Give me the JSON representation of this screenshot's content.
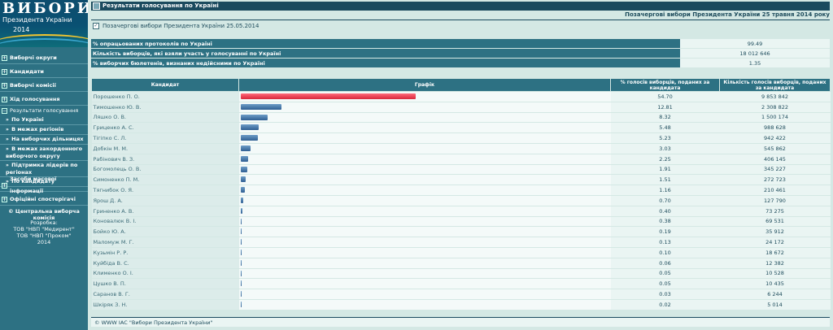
{
  "logo": {
    "title": "ВИБОРИ",
    "subtitle": "Президента України",
    "year": "2014"
  },
  "sidebar": {
    "items": [
      {
        "label": "Виборчі округи",
        "top": 66
      },
      {
        "label": "Кандидати",
        "top": 82
      },
      {
        "label": "Виборчі комісії",
        "top": 98
      },
      {
        "label": "Хід голосування",
        "top": 114
      }
    ],
    "results_section": {
      "label": "Результати голосування",
      "subitems": [
        "По Україні",
        "В межах регіонів",
        "На виборчих дільницях",
        "В межах закордонного виборчого округу",
        "Підтримка лідерів по регіонах",
        "По кандидату"
      ]
    },
    "items_bottom": [
      {
        "label": "Засоби масової інформації"
      },
      {
        "label": "Офіційні спостерігачі"
      }
    ],
    "copyright": "© Центральна виборча комісія",
    "dev_label": "Розробка:",
    "dev_lines": [
      "ТОВ \"НВП \"Медирент\"",
      "ТОВ \"НВП \"Проком\"",
      "2014"
    ]
  },
  "header": {
    "title": "Результати голосування по Україні",
    "election_title": "Позачергові вибори Президента України 25 травня 2014 року",
    "election_sub": "Позачергові вибори Президента України 25.05.2014"
  },
  "stats": [
    {
      "label": "% опрацьованих протоколів по Україні",
      "value": "99.49"
    },
    {
      "label": "Кількість виборців, які взяли участь у голосуванні по Україні",
      "value": "18 012 646"
    },
    {
      "label": "% виборчих бюлетенів, визнаних недійсними по Україні",
      "value": "1.35"
    }
  ],
  "table": {
    "headers": [
      "Кандидат",
      "Графік",
      "% голосів виборців, поданих за кандидата",
      "Кількість голосів виборців, поданих за кандидата"
    ],
    "rows": [
      {
        "name": "Порошенко П. О.",
        "pct": "54.70",
        "votes": "9 853 842"
      },
      {
        "name": "Тимошенко Ю. В.",
        "pct": "12.81",
        "votes": "2 308 822"
      },
      {
        "name": "Ляшко О. В.",
        "pct": "8.32",
        "votes": "1 500 174"
      },
      {
        "name": "Гриценко А. С.",
        "pct": "5.48",
        "votes": "988 628"
      },
      {
        "name": "Тігіпко С. Л.",
        "pct": "5.23",
        "votes": "942 422"
      },
      {
        "name": "Добкін М. М.",
        "pct": "3.03",
        "votes": "545 862"
      },
      {
        "name": "Рабінович В. З.",
        "pct": "2.25",
        "votes": "406 145"
      },
      {
        "name": "Богомолець О. В.",
        "pct": "1.91",
        "votes": "345 227"
      },
      {
        "name": "Симоненко П. М.",
        "pct": "1.51",
        "votes": "272 723"
      },
      {
        "name": "Тягнибок О. Я.",
        "pct": "1.16",
        "votes": "210 461"
      },
      {
        "name": "Ярош Д. А.",
        "pct": "0.70",
        "votes": "127 790"
      },
      {
        "name": "Гриненко А. В.",
        "pct": "0.40",
        "votes": "73 275"
      },
      {
        "name": "Коновалюк В. І.",
        "pct": "0.38",
        "votes": "69 531"
      },
      {
        "name": "Бойко Ю. А.",
        "pct": "0.19",
        "votes": "35 912"
      },
      {
        "name": "Маломуж М. Г.",
        "pct": "0.13",
        "votes": "24 172"
      },
      {
        "name": "Кузьмін Р. Р.",
        "pct": "0.10",
        "votes": "18 672"
      },
      {
        "name": "Куйбіда В. С.",
        "pct": "0.06",
        "votes": "12 382"
      },
      {
        "name": "Клименко О. І.",
        "pct": "0.05",
        "votes": "10 528"
      },
      {
        "name": "Цушко В. П.",
        "pct": "0.05",
        "votes": "10 435"
      },
      {
        "name": "Саранов В. Г.",
        "pct": "0.03",
        "votes": "6 244"
      },
      {
        "name": "Шкіряк З. Н.",
        "pct": "0.02",
        "votes": "5 014"
      }
    ]
  },
  "footer": "© WWW ІАС \"Вибори Президента України\"",
  "colors": {
    "sidebar": "#2d7183",
    "header": "#1a4a5e",
    "leader_bar": "#d8283c",
    "bar": "#2f5f93",
    "background": "#d4e8e4"
  }
}
